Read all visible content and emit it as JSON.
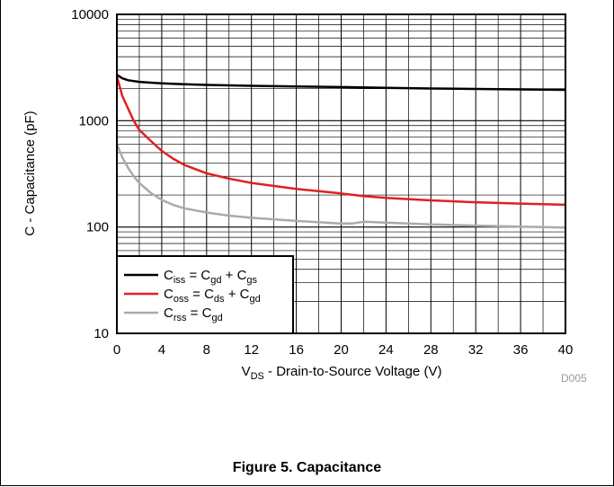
{
  "figure_code": "D005",
  "caption": "Figure 5. Capacitance",
  "chart_data": {
    "type": "line",
    "xlabel": {
      "main": "V",
      "sub": "DS",
      "rest": " - Drain-to-Source Voltage (V)"
    },
    "ylabel": "C - Capacitance (pF)",
    "xlim": [
      0,
      40
    ],
    "ylim": [
      10,
      10000
    ],
    "yscale": "log",
    "x_ticks": [
      0,
      4,
      8,
      12,
      16,
      20,
      24,
      28,
      32,
      36,
      40
    ],
    "y_ticks": [
      10,
      100,
      1000,
      10000
    ],
    "grid": true,
    "legend_position": "bottom-left",
    "series": [
      {
        "color": "#000000",
        "legend": {
          "a": "C",
          "a_sub": "iss",
          "op1": " = C",
          "b_sub": "gd",
          "op2": " + C",
          "c_sub": "gs"
        },
        "x": [
          0,
          0.5,
          1,
          2,
          3,
          4,
          6,
          8,
          12,
          16,
          20,
          24,
          28,
          32,
          36,
          40
        ],
        "y": [
          2700,
          2500,
          2400,
          2320,
          2280,
          2250,
          2200,
          2170,
          2130,
          2100,
          2070,
          2040,
          2010,
          1990,
          1970,
          1950
        ]
      },
      {
        "color": "#e02020",
        "legend": {
          "a": "C",
          "a_sub": "oss",
          "op1": " = C",
          "b_sub": "ds",
          "op2": " + C",
          "c_sub": "gd"
        },
        "x": [
          0,
          0.5,
          1,
          1.5,
          2,
          3,
          4,
          5,
          6,
          8,
          10,
          12,
          16,
          20,
          22,
          24,
          28,
          32,
          36,
          40
        ],
        "y": [
          2600,
          1700,
          1300,
          1000,
          820,
          650,
          520,
          440,
          385,
          320,
          285,
          260,
          228,
          207,
          195,
          188,
          178,
          171,
          166,
          162
        ]
      },
      {
        "color": "#aaaaaa",
        "legend": {
          "a": "C",
          "a_sub": "rss",
          "op1": " = C",
          "b_sub": "gd"
        },
        "x": [
          0,
          0.5,
          1,
          1.5,
          2,
          3,
          4,
          5,
          6,
          8,
          10,
          12,
          16,
          20,
          21,
          22,
          24,
          28,
          32,
          36,
          40
        ],
        "y": [
          600,
          450,
          360,
          300,
          260,
          210,
          180,
          162,
          150,
          137,
          128,
          122,
          114,
          108,
          108,
          112,
          110,
          106,
          103,
          101,
          99
        ]
      }
    ]
  }
}
